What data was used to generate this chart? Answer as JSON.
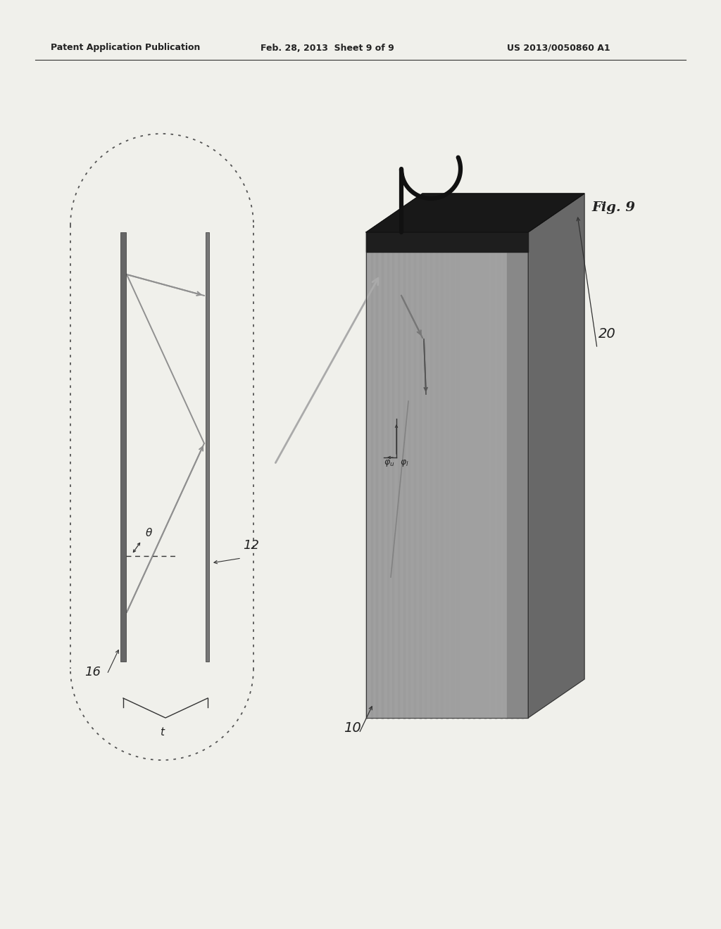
{
  "header_left": "Patent Application Publication",
  "header_mid": "Feb. 28, 2013  Sheet 9 of 9",
  "header_right": "US 2013/0050860 A1",
  "fig_label": "Fig. 9",
  "label_10": "10",
  "label_12": "12",
  "label_16": "16",
  "label_20": "20",
  "label_t": "t",
  "label_theta": "θ",
  "bg_color": "#f0f0eb",
  "panel_front_color": "#a8a8a8",
  "panel_side_color": "#787878",
  "panel_top_color": "#2a2a2a",
  "panel_top_face_color": "#1a1a1a",
  "hook_color": "#111111",
  "ray_color": "#909090",
  "dot_outline_color": "#555555",
  "line_color": "#333333"
}
